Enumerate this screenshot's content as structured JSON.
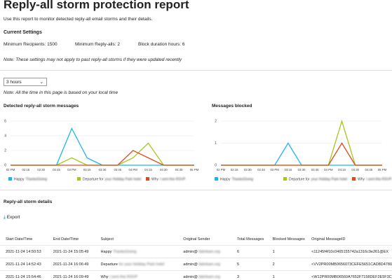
{
  "header": {
    "title": "Reply-all storm protection report",
    "subtitle": "Use this report to monitor detected reply-all email storms and their details."
  },
  "settings": {
    "heading": "Current Settings",
    "items": [
      {
        "label": "Minimum Recipients:",
        "value": "1500"
      },
      {
        "label": "Minimum Reply-alls:",
        "value": "2"
      },
      {
        "label": "Block duration hours:",
        "value": "6"
      }
    ],
    "note": "Note: These settings may not apply to past reply-all storms if they were updated recently"
  },
  "filter": {
    "selected": "3 hours",
    "note": "Note: All the time in this page is based on your local time"
  },
  "chart_data": [
    {
      "type": "line",
      "title": "Detected reply-all storm messages",
      "categories": [
        "02 PM",
        "02:15",
        "02:30",
        "02:45",
        "03 PM",
        "03:15",
        "03:30",
        "03:45",
        "04 PM",
        "04:15",
        "04:30",
        "04:45",
        "05 PM"
      ],
      "ylim": [
        0,
        6
      ],
      "yticks": [
        0,
        2,
        4,
        6
      ],
      "grid": true,
      "series": [
        {
          "name": "Happy",
          "name_hidden": "ThanksGiving",
          "color": "#1cb4ee",
          "values": [
            0,
            0,
            0,
            0,
            5,
            1,
            0,
            0,
            0,
            0,
            0,
            0,
            0
          ]
        },
        {
          "name": "Departure for",
          "name_hidden": "your Holiday Park hotel",
          "color": "#a6c81e",
          "values": [
            0,
            0,
            0,
            0,
            1,
            0,
            0,
            0,
            1,
            3,
            0,
            0,
            0
          ]
        },
        {
          "name": "Why",
          "name_hidden": "I sent this RSVP",
          "color": "#e04a1a",
          "values": [
            0,
            0,
            0,
            0,
            0,
            0,
            0,
            0,
            2,
            1,
            0,
            0,
            0
          ]
        }
      ]
    },
    {
      "type": "line",
      "title": "Messages blocked",
      "categories": [
        "02 PM",
        "02:15",
        "02:30",
        "02:45",
        "03 PM",
        "03:15",
        "03:30",
        "03:45",
        "04 PM",
        "04:15",
        "04:30",
        "04:45",
        "05 PM"
      ],
      "ylim": [
        0,
        2
      ],
      "yticks": [
        0,
        1,
        2
      ],
      "grid": true,
      "series": [
        {
          "name": "Happy",
          "name_hidden": "ThanksGiving",
          "color": "#1cb4ee",
          "values": [
            0,
            0,
            0,
            0,
            0,
            1,
            0,
            0,
            0,
            0,
            0,
            0,
            0
          ]
        },
        {
          "name": "Departure for",
          "name_hidden": "your Holiday Park hotel",
          "color": "#a6c81e",
          "values": [
            0,
            0,
            0,
            0,
            0,
            0,
            0,
            0,
            0,
            2,
            0,
            0,
            0
          ]
        },
        {
          "name": "Why",
          "name_hidden": "I sent this RSVP",
          "color": "#e04a1a",
          "values": [
            0,
            0,
            0,
            0,
            0,
            0,
            0,
            0,
            0,
            1,
            0,
            0,
            0
          ]
        }
      ]
    }
  ],
  "details": {
    "heading": "Reply-all storm details",
    "export": "Export",
    "columns": [
      "Start Date/Time",
      "End Date/Time",
      "Subject",
      "Original Sender",
      "Total Messages",
      "Blocked Messages",
      "Original MessageID"
    ],
    "rows": [
      [
        "2021-11-24 14:50:53",
        "2021-11-24 15:05:49",
        [
          "Happy",
          "ThanksGiving"
        ],
        [
          "admin@",
          "fabrikam.org"
        ],
        "6",
        "1",
        "<11245f4f10c0465155742a1316c9e261@EX"
      ],
      [
        "2021-11-24 14:52:43",
        "2021-11-24 16:06:49",
        [
          "Departure",
          "for your Holiday Park hotel"
        ],
        [
          "admin@",
          "fabrikam.org"
        ],
        "5",
        "2",
        "<VV2PR00MB0656073CEFE5651CAD8D4780"
      ],
      [
        "2021-11-24 15:54:46",
        "2021-11-24 16:09:49",
        [
          "Why",
          "I sent this RSVP"
        ],
        [
          "admin@",
          "fabrikam.org"
        ],
        "3",
        "1",
        "<W12PR00MB06560A7652F7158DEF2E5F3C"
      ]
    ]
  }
}
